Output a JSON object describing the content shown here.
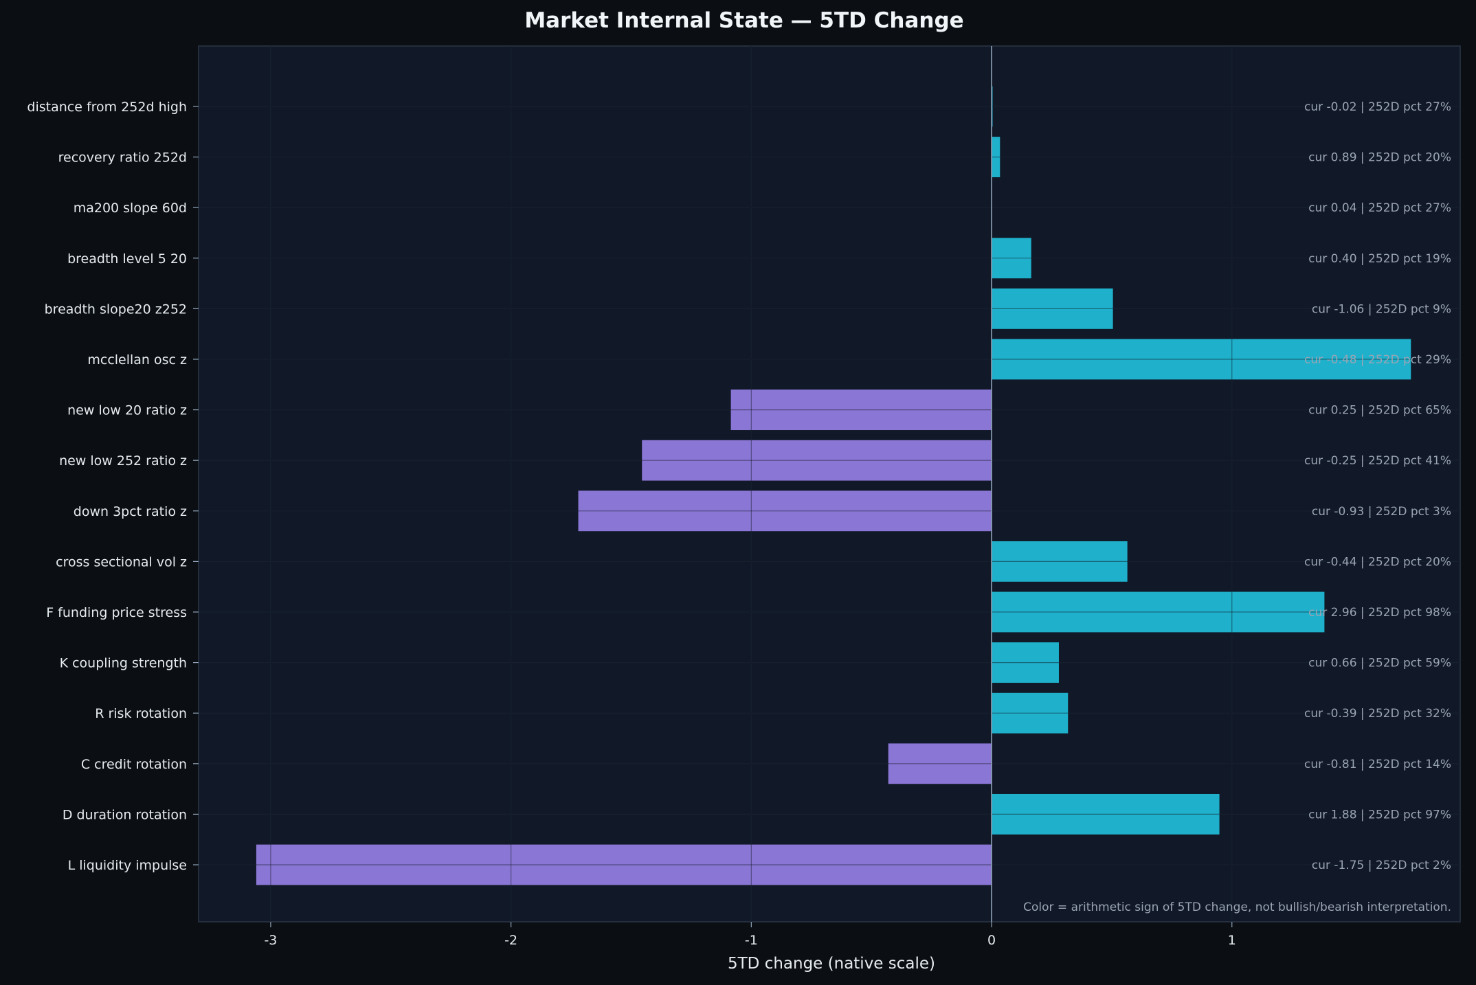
{
  "chart_data": {
    "type": "bar",
    "orientation": "horizontal",
    "title": "Market Internal State — 5TD Change",
    "xlabel": "5TD change (native scale)",
    "ylabel": "",
    "xlim": [
      -3.3,
      1.95
    ],
    "xticks": [
      -3,
      -2,
      -1,
      0,
      1
    ],
    "grid": true,
    "categories": [
      "distance from 252d high",
      "recovery ratio 252d",
      "ma200 slope 60d",
      "breadth level 5 20",
      "breadth slope20 z252",
      "mcclellan osc z",
      "new low 20 ratio z",
      "new low 252 ratio z",
      "down 3pct ratio z",
      "cross sectional vol z",
      "F funding price stress",
      "K coupling strength",
      "R risk rotation",
      "C credit rotation",
      "D duration rotation",
      "L liquidity impulse"
    ],
    "values": [
      0.004,
      0.035,
      0.0,
      0.165,
      0.505,
      1.745,
      -1.085,
      -1.455,
      -1.72,
      0.565,
      1.385,
      0.28,
      0.318,
      -0.43,
      0.948,
      -3.06
    ],
    "annotations": [
      "cur -0.02 | 252D pct 27%",
      "cur 0.89 | 252D pct 20%",
      "cur 0.04 | 252D pct 27%",
      "cur 0.40 | 252D pct 19%",
      "cur -1.06 | 252D pct 9%",
      "cur -0.48 | 252D pct 29%",
      "cur 0.25 | 252D pct 65%",
      "cur -0.25 | 252D pct 41%",
      "cur -0.93 | 252D pct 3%",
      "cur -0.44 | 252D pct 20%",
      "cur 2.96 | 252D pct 98%",
      "cur 0.66 | 252D pct 59%",
      "cur -0.39 | 252D pct 32%",
      "cur -0.81 | 252D pct 14%",
      "cur 1.88 | 252D pct 97%",
      "cur -1.75 | 252D pct 2%"
    ],
    "note": "Color = arithmetic sign of 5TD change, not bullish/bearish interpretation.",
    "colors": {
      "positive": "#1fb0cb",
      "negative": "#8a76d4",
      "background": "#0b0f13",
      "plot_background": "#111827",
      "grid": "#1e2a3a",
      "text": "#e6ebf0",
      "annotation": "#9aa5b4"
    }
  }
}
